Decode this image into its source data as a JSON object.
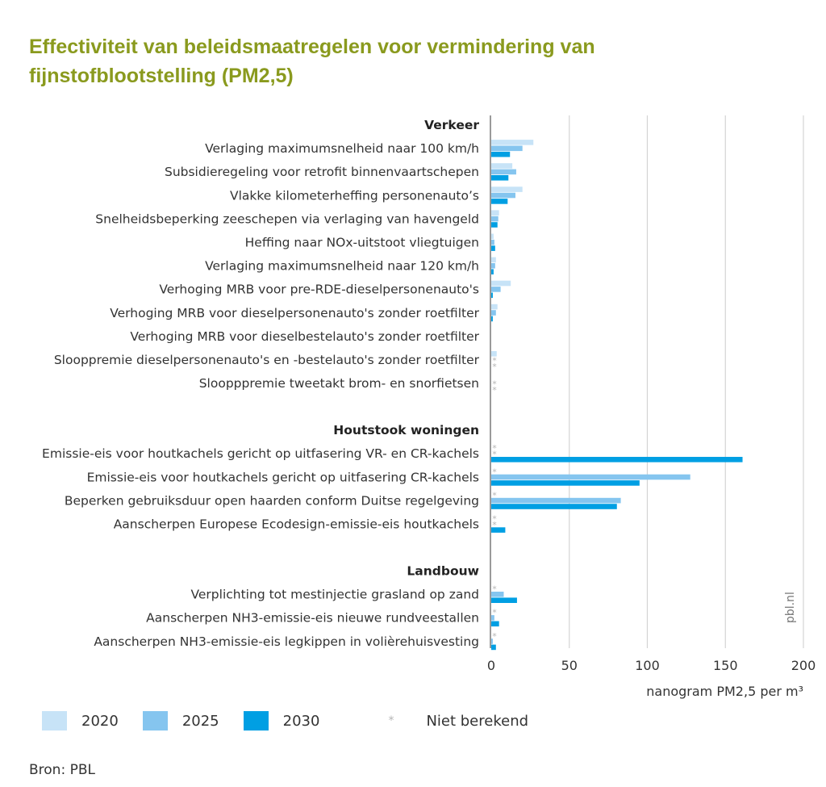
{
  "title": "Effectiviteit van beleidsmaatregelen voor vermindering van fijnstofblootstelling (PM2,5)",
  "source": "Bron: PBL",
  "watermark": "pbl.nl",
  "legend": {
    "series": [
      {
        "label": "2020",
        "color": "#c7e3f7"
      },
      {
        "label": "2025",
        "color": "#85c5ef"
      },
      {
        "label": "2030",
        "color": "#009fe3"
      }
    ],
    "not_calculated_symbol": "*",
    "not_calculated_label": "Niet berekend"
  },
  "chart_data": {
    "type": "bar",
    "orientation": "horizontal",
    "title": "Effectiviteit van beleidsmaatregelen voor vermindering van fijnstofblootstelling (PM2,5)",
    "xlabel": "nanogram PM2,5 per m³",
    "xlim": [
      0,
      200
    ],
    "xticks": [
      0,
      50,
      100,
      150,
      200
    ],
    "grid": true,
    "legend_position": "bottom",
    "series_names": [
      "2020",
      "2025",
      "2030"
    ],
    "not_calculated_marker": "*",
    "groups": [
      {
        "name": "Verkeer",
        "items": [
          {
            "label": "Verlaging maximumsnelheid naar 100 km/h",
            "values": [
              27,
              20,
              12
            ]
          },
          {
            "label": "Subsidieregeling voor retrofit binnenvaartschepen",
            "values": [
              13.5,
              16,
              11
            ]
          },
          {
            "label": "Vlakke kilometerheffing personenauto’s",
            "values": [
              20,
              15.5,
              10.5
            ]
          },
          {
            "label": "Snelheidsbeperking zeeschepen via verlaging van havengeld",
            "values": [
              5,
              4.5,
              4
            ]
          },
          {
            "label": "Heffing naar NOx-uitstoot vliegtuigen",
            "values": [
              1.5,
              2,
              2.5
            ]
          },
          {
            "label": "Verlaging maximumsnelheid naar 120 km/h",
            "values": [
              3,
              2.5,
              1.5
            ]
          },
          {
            "label": "Verhoging MRB voor pre-RDE-dieselpersonenauto's",
            "values": [
              12.5,
              6,
              1
            ]
          },
          {
            "label": "Verhoging MRB voor dieselpersonenauto's zonder roetfilter",
            "values": [
              4,
              3,
              1
            ]
          },
          {
            "label": "Verhoging MRB voor dieselbestelauto's zonder roetfilter",
            "values": [
              0,
              0,
              0
            ]
          },
          {
            "label": "Slooppremie dieselpersonenauto's en -bestelauto's zonder roetfilter",
            "values": [
              3.5,
              null,
              null
            ]
          },
          {
            "label": "Sloopppremie tweetakt brom- en snorfietsen",
            "values": [
              0,
              null,
              null
            ]
          }
        ]
      },
      {
        "name": "Houtstook woningen",
        "items": [
          {
            "label": "Emissie-eis voor houtkachels gericht op uitfasering VR- en CR-kachels",
            "values": [
              null,
              null,
              161
            ]
          },
          {
            "label": "Emissie-eis voor houtkachels gericht op uitfasering CR-kachels",
            "values": [
              null,
              127.5,
              95
            ]
          },
          {
            "label": "Beperken gebruiksduur open haarden conform Duitse regelgeving",
            "values": [
              null,
              83,
              80.5
            ]
          },
          {
            "label": "Aanscherpen Europese Ecodesign-emissie-eis houtkachels",
            "values": [
              null,
              null,
              9
            ]
          }
        ]
      },
      {
        "name": "Landbouw",
        "items": [
          {
            "label": "Verplichting tot mestinjectie grasland op zand",
            "values": [
              null,
              8,
              16.5
            ]
          },
          {
            "label": "Aanscherpen NH3-emissie-eis nieuwe rundveestallen",
            "values": [
              null,
              2,
              5
            ]
          },
          {
            "label": "Aanscherpen NH3-emissie-eis legkippen in volièrehuisvesting",
            "values": [
              null,
              1,
              3
            ]
          }
        ]
      }
    ]
  }
}
